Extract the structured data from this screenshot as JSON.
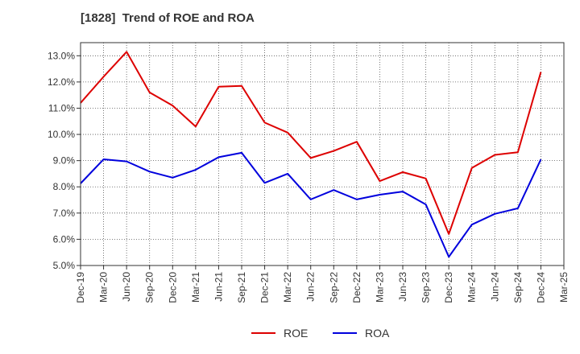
{
  "chart_data": {
    "type": "line",
    "title": "[1828]  Trend of ROE and ROA",
    "xlabel": "",
    "ylabel": "",
    "x": [
      "Dec-19",
      "Mar-20",
      "Jun-20",
      "Sep-20",
      "Dec-20",
      "Mar-21",
      "Jun-21",
      "Sep-21",
      "Dec-21",
      "Mar-22",
      "Jun-22",
      "Sep-22",
      "Dec-22",
      "Mar-23",
      "Jun-23",
      "Sep-23",
      "Dec-23",
      "Mar-24",
      "Jun-24",
      "Sep-24",
      "Dec-24",
      "Mar-25"
    ],
    "ylim": [
      5.0,
      13.5
    ],
    "yticks": [
      "5.0%",
      "6.0%",
      "7.0%",
      "8.0%",
      "9.0%",
      "10.0%",
      "11.0%",
      "12.0%",
      "13.0%"
    ],
    "grid": true,
    "legend_position": "bottom-center",
    "series": [
      {
        "name": "ROE",
        "color": "#dd0000",
        "values": [
          11.2,
          12.2,
          13.15,
          11.6,
          11.1,
          10.3,
          11.82,
          11.85,
          10.45,
          10.07,
          9.1,
          9.37,
          9.72,
          8.22,
          8.56,
          8.32,
          6.2,
          8.72,
          9.22,
          9.32,
          12.38,
          null
        ]
      },
      {
        "name": "ROA",
        "color": "#0000dd",
        "values": [
          8.13,
          9.05,
          8.97,
          8.58,
          8.35,
          8.65,
          9.13,
          9.3,
          8.15,
          8.5,
          7.52,
          7.88,
          7.52,
          7.7,
          7.82,
          7.33,
          5.33,
          6.56,
          6.97,
          7.18,
          9.05,
          null
        ]
      }
    ]
  }
}
